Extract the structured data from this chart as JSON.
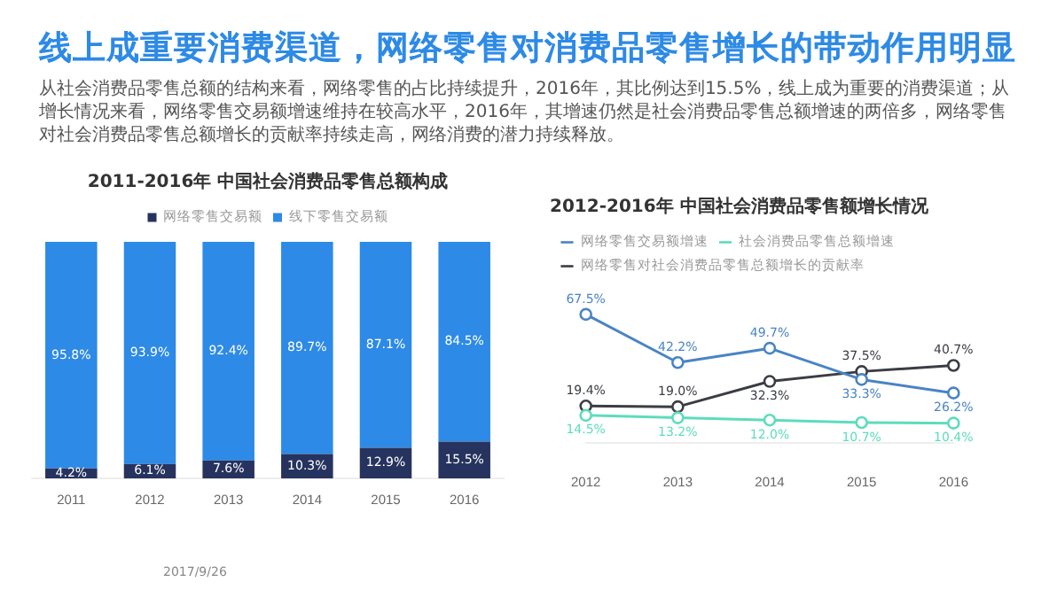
{
  "chart_data": [
    {
      "type": "other",
      "title": "线上成重要消费渠道，网络零售对消费品零售增长的带动作用明显",
      "subtitle": "从社会消费品零售总额的结构来看，网络零售的占比持续提升，2016年，其比例达到15.5%，线上成为重要的消费渠道；从增长情况来看，网络零售交易额增速维持在较高水平，2016年，其增速仍然是社会消费品零售总额增速的两倍多，网络零售对社会消费品零售总额增长的贡献率持续走高，网络消费的潜力持续释放。",
      "annotations": [
        "2017/9/26"
      ]
    },
    {
      "type": "bar",
      "title": "2011-2016年 中国社会消费品零售总额构成",
      "categories": [
        "2011",
        "2012",
        "2013",
        "2014",
        "2015",
        "2016"
      ],
      "stacked": true,
      "legend": "top",
      "grid": false,
      "series": [
        {
          "name": "网络零售交易额",
          "color": "#26335e",
          "values": [
            4.2,
            6.1,
            7.6,
            10.3,
            12.9,
            15.5
          ],
          "value_labels": [
            "4.2%",
            "6.1%",
            "7.6%",
            "10.3%",
            "12.9%",
            "15.5%"
          ]
        },
        {
          "name": "线下零售交易额",
          "color": "#2d8ae6",
          "values": [
            95.8,
            93.9,
            92.4,
            89.7,
            87.1,
            84.5
          ],
          "value_labels": [
            "95.8%",
            "93.9%",
            "92.4%",
            "89.7%",
            "87.1%",
            "84.5%"
          ]
        }
      ]
    },
    {
      "type": "line",
      "title": "2012-2016年 中国社会消费品零售额增长情况",
      "categories": [
        "2012",
        "2013",
        "2014",
        "2015",
        "2016"
      ],
      "legend": "top",
      "grid": false,
      "marker": "circle",
      "line_style": "solid",
      "series": [
        {
          "name": "网络零售交易额增速",
          "color": "#4a84c4",
          "values": [
            67.5,
            42.2,
            49.7,
            33.3,
            26.2
          ],
          "value_labels": [
            "67.5%",
            "42.2%",
            "49.7%",
            "33.3%",
            "26.2%"
          ]
        },
        {
          "name": "社会消费品零售总额增速",
          "color": "#5ddcbc",
          "values": [
            14.5,
            13.2,
            12.0,
            10.7,
            10.4
          ],
          "value_labels": [
            "14.5%",
            "13.2%",
            "12.0%",
            "10.7%",
            "10.4%"
          ]
        },
        {
          "name": "网络零售对社会消费品零售总额增长的贡献率",
          "color": "#3a3d44",
          "values": [
            19.4,
            19.0,
            32.3,
            37.5,
            40.7
          ],
          "value_labels": [
            "19.4%",
            "19.0%",
            "32.3%",
            "37.5%",
            "40.7%"
          ]
        }
      ]
    }
  ]
}
